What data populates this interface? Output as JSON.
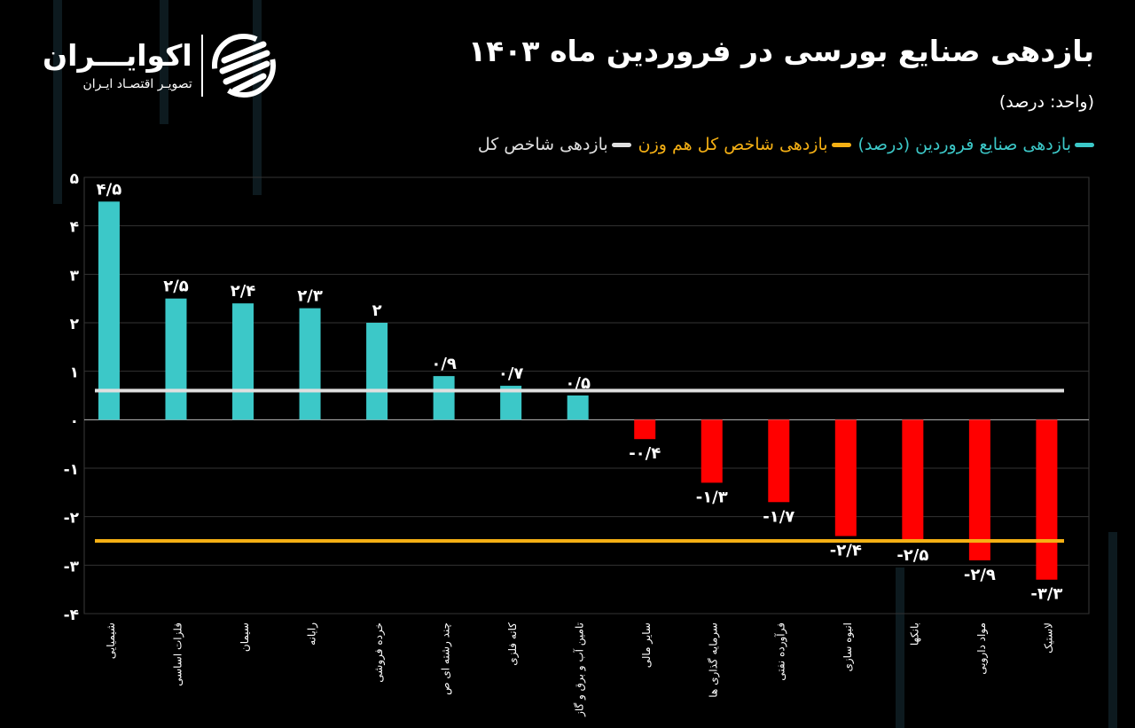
{
  "header": {
    "title": "بازدهی صنایع بورسی در فروردین ماه ۱۴۰۳",
    "unit": "(واحد: درصد)"
  },
  "logo": {
    "name": "اکوایـــران",
    "tagline": "تصویـر اقتصـاد ایـران"
  },
  "legend": [
    {
      "label": "بازدهی صنایع فروردین (درصد)",
      "color": "#3cc8c8"
    },
    {
      "label": "بازدهی شاخص کل هم وزن",
      "color": "#f5b014"
    },
    {
      "label": "بازدهی شاخص کل",
      "color": "#e0e0e0"
    }
  ],
  "chart_data": {
    "type": "bar",
    "title": "بازدهی صنایع بورسی در فروردین ماه ۱۴۰۳",
    "ylabel": "(واحد: درصد)",
    "ylim": [
      -4,
      5
    ],
    "yticks": [
      5,
      4,
      3,
      2,
      1,
      0,
      -1,
      -2,
      -3,
      -4
    ],
    "ytick_labels": [
      "۵",
      "۴",
      "۳",
      "۲",
      "۱",
      "۰",
      "-۱",
      "-۲",
      "-۳",
      "-۴"
    ],
    "grid": true,
    "categories": [
      "شیمیایی",
      "فلزات اساسی",
      "سیمان",
      "رایانه",
      "خرده فروشی",
      "چند رشته ای ص",
      "کانه فلزی",
      "تامین آب و برق و گاز",
      "سایر مالی",
      "سرمایه گذاری ها",
      "فرآورده نفتی",
      "انبوه سازی",
      "بانکها",
      "مواد دارویی",
      "لاستیک"
    ],
    "series": [
      {
        "name": "بازدهی صنایع فروردین (درصد)",
        "values": [
          4.5,
          2.5,
          2.4,
          2.3,
          2,
          0.9,
          0.7,
          0.5,
          -0.4,
          -1.3,
          -1.7,
          -2.4,
          -2.5,
          -2.9,
          -3.3
        ],
        "data_labels": [
          "۴/۵",
          "۲/۵",
          "۲/۴",
          "۲/۳",
          "۲",
          "۰/۹",
          "۰/۷",
          "۰/۵",
          "-۰/۴",
          "-۱/۳",
          "-۱/۷",
          "-۲/۴",
          "-۲/۵",
          "-۲/۹",
          "-۳/۳"
        ],
        "positive_color": "#3cc8c8",
        "negative_color": "#ff0000"
      }
    ],
    "reference_lines": [
      {
        "name": "بازدهی شاخص کل",
        "value": 0.6,
        "color": "#e0e0e0"
      },
      {
        "name": "بازدهی شاخص کل هم وزن",
        "value": -2.5,
        "color": "#f5b014"
      }
    ],
    "legend_position": "top-right"
  }
}
